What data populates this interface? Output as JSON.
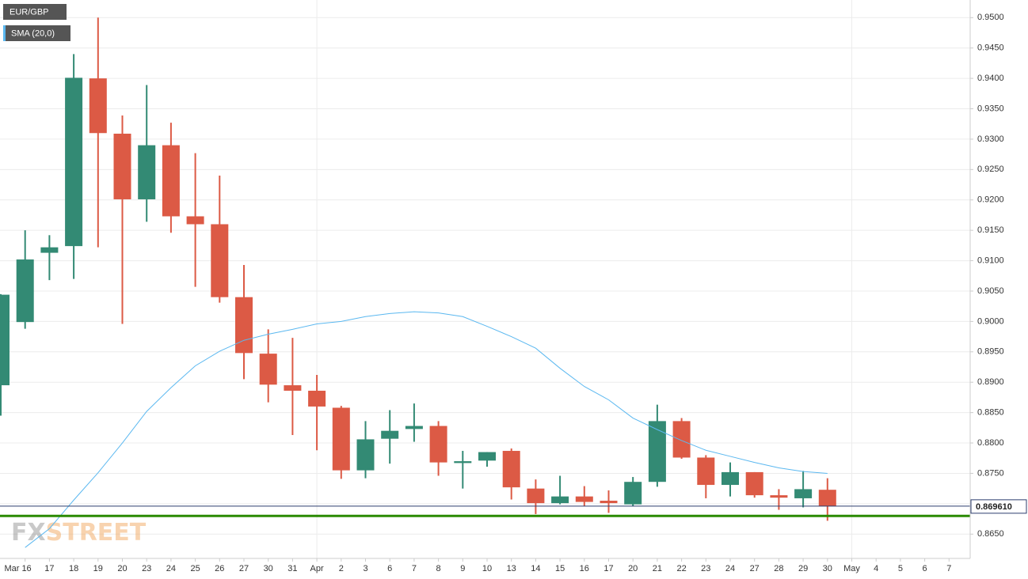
{
  "chart_data": {
    "type": "candlestick",
    "categories": [
      null,
      "Mar 16",
      "17",
      "18",
      "19",
      "20",
      "23",
      "24",
      "25",
      "26",
      "27",
      "30",
      "31",
      "Apr",
      "2",
      "3",
      "6",
      "7",
      "8",
      "9",
      "10",
      "13",
      "14",
      "15",
      "16",
      "17",
      "20",
      "21",
      "22",
      "23",
      "24",
      "27",
      "28",
      "29",
      "30",
      "May",
      "4",
      "5",
      "6",
      "7"
    ],
    "series": [
      {
        "name": "EUR/GBP",
        "up_color": "#338a74",
        "down_color": "#dc5a45",
        "open": [
          0.8895,
          0.8999,
          0.9113,
          0.9124,
          0.94,
          0.9309,
          0.9201,
          0.929,
          0.9173,
          0.916,
          0.904,
          0.8947,
          0.8895,
          0.8886,
          0.8858,
          0.8755,
          0.8807,
          0.8823,
          0.8828,
          0.8767,
          0.8771,
          0.8787,
          0.8725,
          0.8701,
          0.8712,
          0.8705,
          0.8699,
          0.8736,
          0.8836,
          0.8776,
          0.8731,
          0.8752,
          0.8714,
          0.8709,
          0.8723,
          null,
          null,
          null,
          null,
          null
        ],
        "high": [
          0.9045,
          0.915,
          0.9142,
          0.944,
          0.95,
          0.9339,
          0.9389,
          0.9327,
          0.9277,
          0.924,
          0.9093,
          0.8987,
          0.8973,
          0.8912,
          0.8861,
          0.8836,
          0.8854,
          0.8865,
          0.8836,
          0.8787,
          0.8785,
          0.8791,
          0.874,
          0.8746,
          0.8729,
          0.8722,
          0.8744,
          0.8863,
          0.8841,
          0.878,
          0.8768,
          0.8752,
          0.8724,
          0.8754,
          0.8742,
          null,
          null,
          null,
          null,
          null
        ],
        "low": [
          0.8845,
          0.8988,
          0.9068,
          0.907,
          0.9122,
          0.8996,
          0.9164,
          0.9146,
          0.9057,
          0.9031,
          0.8905,
          0.8867,
          0.8813,
          0.8788,
          0.8741,
          0.8742,
          0.8766,
          0.8802,
          0.8746,
          0.8725,
          0.8761,
          0.8707,
          0.8683,
          0.8699,
          0.8696,
          0.8685,
          0.8696,
          0.8728,
          0.8774,
          0.8709,
          0.8712,
          0.871,
          0.869,
          0.8694,
          0.8672,
          null,
          null,
          null,
          null,
          null
        ],
        "close": [
          0.9044,
          0.9102,
          0.9122,
          0.9401,
          0.931,
          0.9201,
          0.929,
          0.9173,
          0.916,
          0.904,
          0.8948,
          0.8896,
          0.8886,
          0.886,
          0.8755,
          0.8806,
          0.882,
          0.8828,
          0.8768,
          0.877,
          0.8785,
          0.8727,
          0.8701,
          0.8712,
          0.8703,
          0.8701,
          0.8736,
          0.8836,
          0.8776,
          0.8731,
          0.8752,
          0.8714,
          0.871,
          0.8724,
          0.8696,
          null,
          null,
          null,
          null,
          null
        ]
      },
      {
        "name": "SMA (20,0)",
        "type": "line",
        "color": "#5bb8f0",
        "values": [
          null,
          0.8628,
          0.8659,
          0.8706,
          0.8751,
          0.88,
          0.8852,
          0.8891,
          0.8927,
          0.8951,
          0.8969,
          0.8979,
          0.8987,
          0.8996,
          0.9,
          0.9008,
          0.9013,
          0.9016,
          0.9014,
          0.9008,
          0.8992,
          0.8975,
          0.8956,
          0.8923,
          0.8893,
          0.8871,
          0.8841,
          0.8822,
          0.8804,
          0.8788,
          0.8778,
          0.8768,
          0.8759,
          0.8753,
          0.875,
          null,
          null,
          null,
          null,
          null
        ]
      }
    ],
    "ylim": [
      0.861,
      0.9529
    ],
    "yticks": [
      {
        "value": 0.865,
        "label": "0.8650"
      },
      {
        "value": 0.87,
        "label": "0.8700"
      },
      {
        "value": 0.875,
        "label": "0.8750"
      },
      {
        "value": 0.88,
        "label": "0.8800"
      },
      {
        "value": 0.885,
        "label": "0.8850"
      },
      {
        "value": 0.89,
        "label": "0.8900"
      },
      {
        "value": 0.895,
        "label": "0.8950"
      },
      {
        "value": 0.9,
        "label": "0.9000"
      },
      {
        "value": 0.905,
        "label": "0.9050"
      },
      {
        "value": 0.91,
        "label": "0.9100"
      },
      {
        "value": 0.915,
        "label": "0.9150"
      },
      {
        "value": 0.92,
        "label": "0.9200"
      },
      {
        "value": 0.925,
        "label": "0.9250"
      },
      {
        "value": 0.93,
        "label": "0.9300"
      },
      {
        "value": 0.935,
        "label": "0.9350"
      },
      {
        "value": 0.94,
        "label": "0.9400"
      },
      {
        "value": 0.945,
        "label": "0.9450"
      },
      {
        "value": 0.95,
        "label": "0.9500"
      }
    ],
    "grid": true,
    "last_price": {
      "value": 0.86961,
      "label": "0.869610",
      "color": "#2c3e6e"
    },
    "support_line": {
      "value": 0.868,
      "color": "#2a8a00"
    },
    "watermark": [
      "FX",
      "STREET"
    ]
  }
}
